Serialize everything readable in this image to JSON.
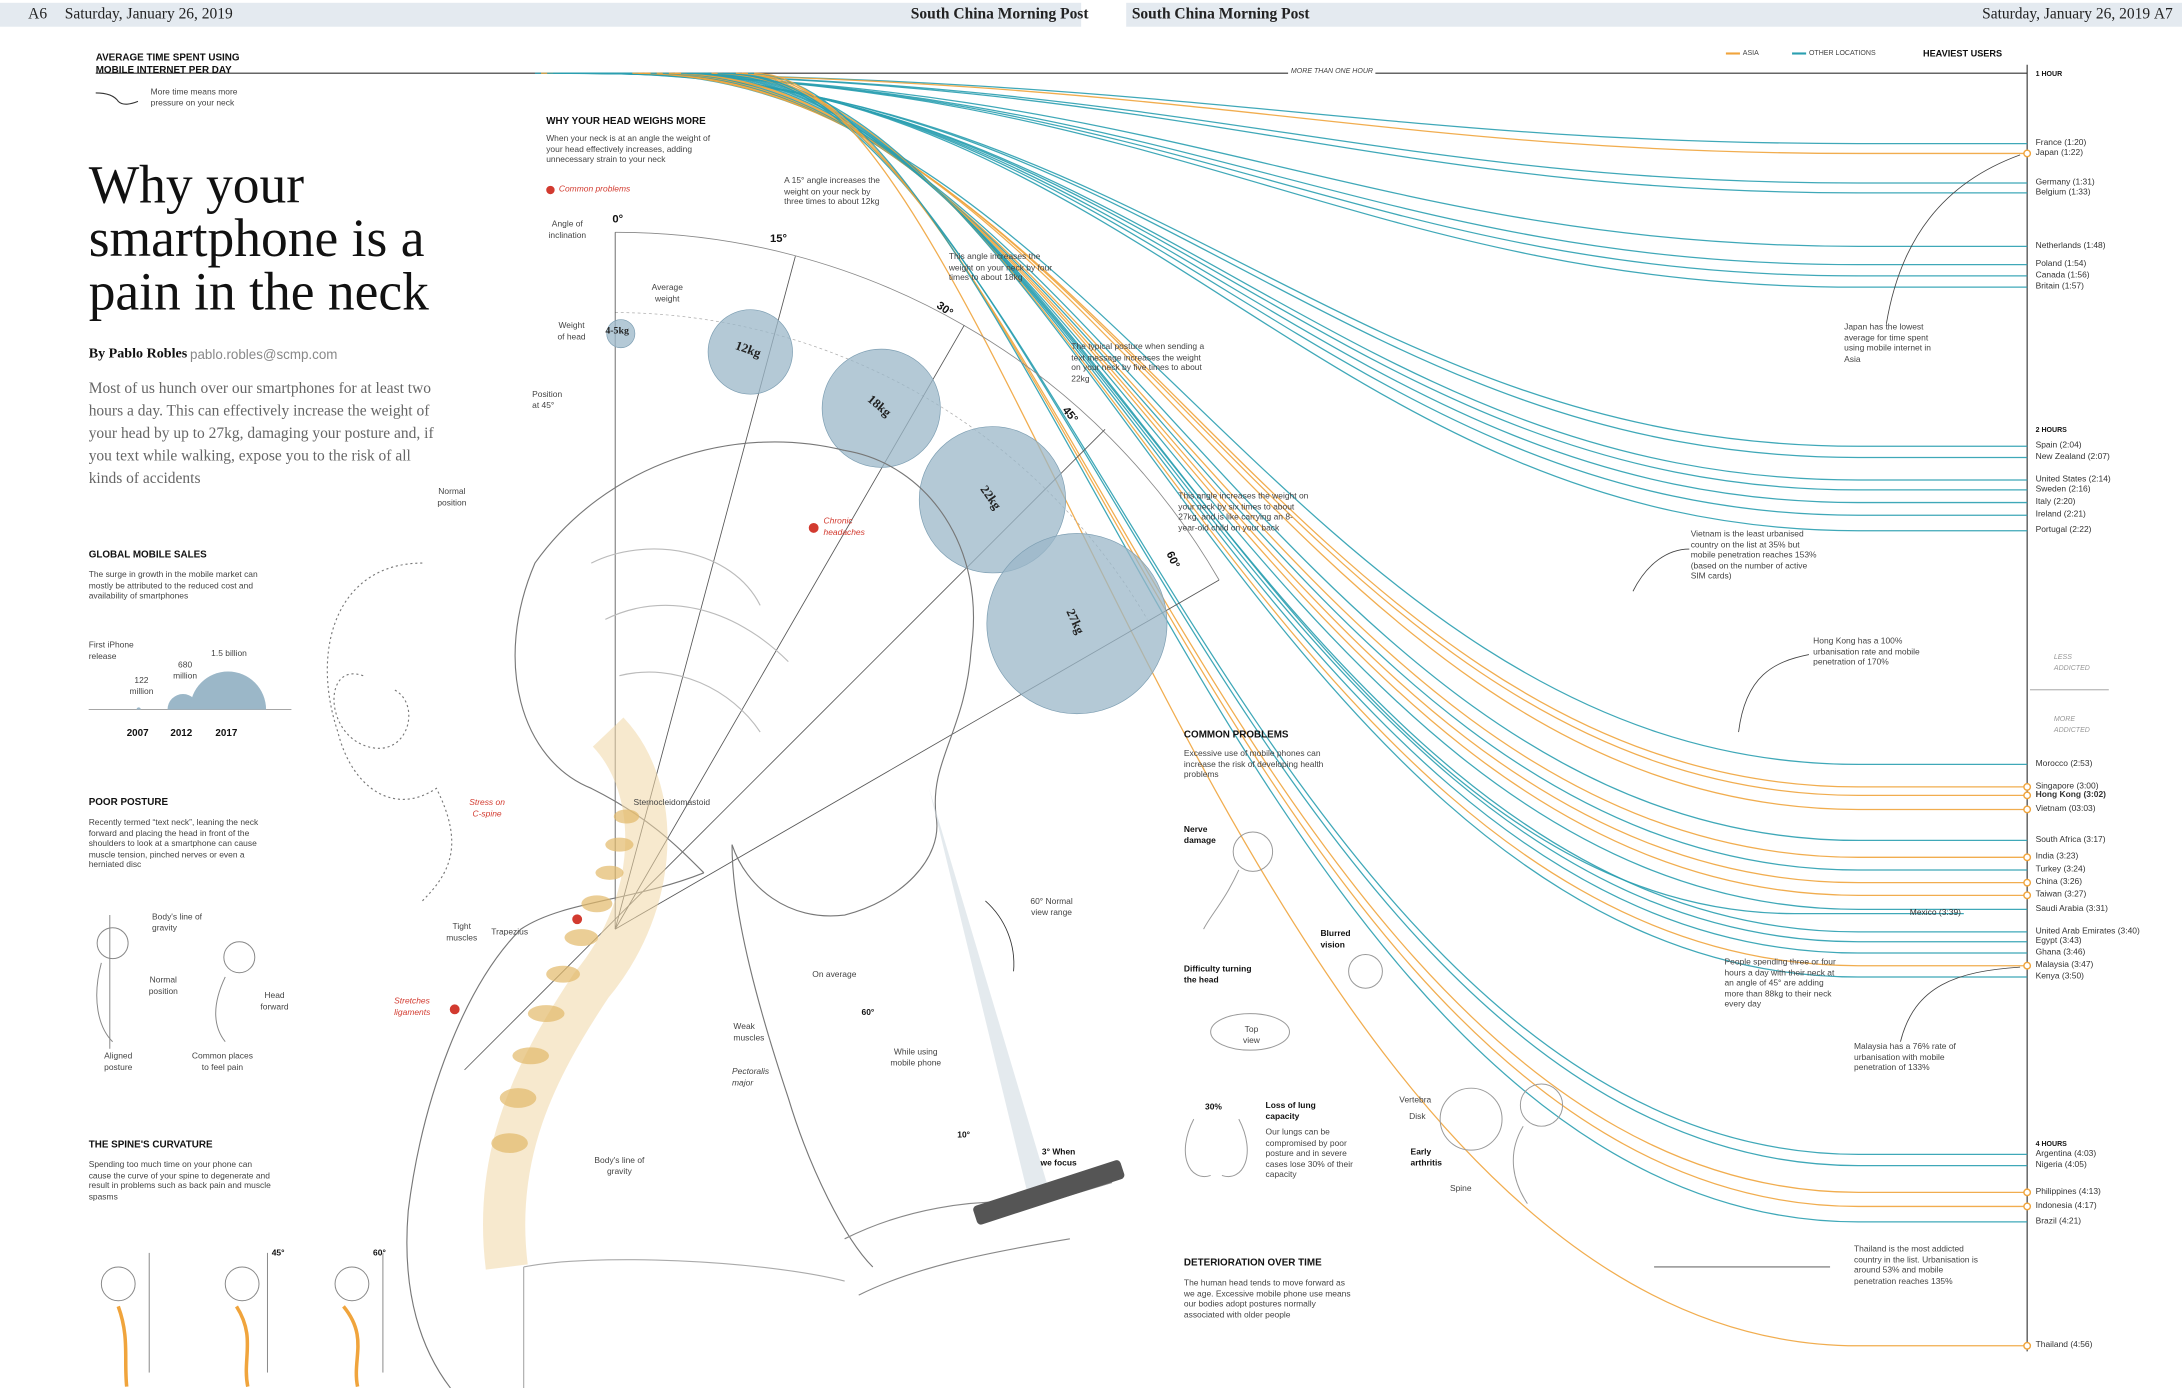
{
  "header": {
    "left_page": "A6",
    "left_date": "Saturday, January 26, 2019",
    "left_paper": "South China Morning Post",
    "right_paper": "South China Morning Post",
    "right_date": "Saturday, January 26, 2019",
    "right_page": "A7"
  },
  "headline": "Why your smartphone is a pain in the neck",
  "byline": {
    "author": "By Pablo Robles",
    "email": "pablo.robles@scmp.com"
  },
  "intro": "Most of us hunch over our smartphones for at least two hours a day. This can effectively increase the weight of your head by up to 27kg, damaging your posture and, if you text while walking, expose you to the risk of all kinds of accidents",
  "sales": {
    "title": "GLOBAL MOBILE SALES",
    "body": "The surge in growth in the mobile market can mostly be attributed to the reduced cost and availability of smartphones",
    "note": "First iPhone release",
    "amounts": [
      "122 million",
      "680 million",
      "1.5 billion"
    ],
    "years": [
      "2007",
      "2012",
      "2017"
    ]
  },
  "posture": {
    "title": "POOR POSTURE",
    "body": "Recently termed “text neck”, leaning the neck forward and placing the head in front of the shoulders to look at a smartphone can cause muscle tension, pinched nerves or even a herniated disc",
    "labels": [
      "Body's line of gravity",
      "Normal position",
      "Head forward",
      "Aligned posture",
      "Common places to feel pain"
    ]
  },
  "curvature": {
    "title": "THE SPINE'S CURVATURE",
    "body": "Spending too much time on your phone can cause the curve of your spine to degenerate and result in problems such as back pain and muscle spasms",
    "angles": [
      "45°",
      "60°"
    ]
  },
  "weight": {
    "title": "WHY YOUR HEAD WEIGHS MORE",
    "body": "When your neck is at an angle the weight of your head effectively increases, adding unnecessary strain to your neck",
    "legend": "Common problems",
    "labels": [
      "Angle of inclination",
      "Weight of head",
      "Average weight",
      "Position at 45°",
      "Normal position"
    ],
    "angles": [
      "0°",
      "15°",
      "30°",
      "45°",
      "60°"
    ],
    "weights": [
      "4-5kg",
      "12kg",
      "18kg",
      "22kg",
      "27kg"
    ],
    "notes": [
      "A 15° angle increases the weight on your neck by three times to about 12kg",
      "This angle increases the weight on your neck by four times to about 18kg",
      "The typical posture when sending a text message increases the weight on your neck by five times to about 22kg",
      "This angle increases the weight on your neck by six times to about 27kg, and is like carrying an 8-year-old child on your back"
    ]
  },
  "illustration": {
    "problems": [
      "Chronic headaches",
      "Stress on C-spine",
      "Stretches ligaments"
    ],
    "labels": [
      "Sternocleidomastoid",
      "Tight muscles",
      "Trapezius",
      "Weak muscles",
      "Pectoralis major",
      "Body's line of gravity",
      "60° Normal view range",
      "On average",
      "60°",
      "While using mobile phone",
      "10°",
      "3° When we focus"
    ]
  },
  "problems": {
    "title": "COMMON PROBLEMS",
    "body": "Excessive use of mobile phones can increase the risk of developing health problems",
    "labels": [
      "Nerve damage",
      "Blurred vision",
      "Difficulty turning the head",
      "Top view",
      "30%",
      "Loss of lung capacity",
      "Vertebra",
      "Disk",
      "Early arthritis",
      "Spine"
    ],
    "lung_note": "Our lungs can be compromised by poor posture and in severe cases lose 30% of their capacity"
  },
  "deterioration": {
    "title": "DETERIORATION OVER TIME",
    "body": "The human head tends to move forward as we age. Excessive mobile phone use means our bodies adopt postures normally associated with older people"
  },
  "usage": {
    "title": "AVERAGE TIME SPENT USING MOBILE INTERNET PER DAY",
    "key_note": "More time means more pressure on your neck",
    "legend": [
      {
        "name": "ASIA",
        "color": "#f0a43c"
      },
      {
        "name": "OTHER LOCATIONS",
        "color": "#2a9fb0"
      }
    ],
    "heaviest": "HEAVIEST USERS",
    "band": "MORE THAN ONE HOUR",
    "scale": [
      "1 HOUR",
      "2 HOURS",
      "4 HOURS"
    ],
    "less": "LESS ADDICTED",
    "more": "MORE ADDICTED",
    "countries": [
      {
        "label": "France (1:20)",
        "group": 1
      },
      {
        "label": "Japan (1:22)",
        "group": 0
      },
      {
        "label": "Germany (1:31)",
        "group": 1
      },
      {
        "label": "Belgium (1:33)",
        "group": 1
      },
      {
        "label": "Netherlands (1:48)",
        "group": 1
      },
      {
        "label": "Poland (1:54)",
        "group": 1
      },
      {
        "label": "Canada (1:56)",
        "group": 1
      },
      {
        "label": "Britain (1:57)",
        "group": 1
      },
      {
        "label": "Spain (2:04)",
        "group": 1
      },
      {
        "label": "New Zealand (2:07)",
        "group": 1
      },
      {
        "label": "United States (2:14)",
        "group": 1
      },
      {
        "label": "Sweden (2:16)",
        "group": 1
      },
      {
        "label": "Italy (2:20)",
        "group": 1
      },
      {
        "label": "Ireland (2:21)",
        "group": 1
      },
      {
        "label": "Portugal (2:22)",
        "group": 1
      },
      {
        "label": "Morocco (2:53)",
        "group": 1
      },
      {
        "label": "Singapore (3:00)",
        "group": 0
      },
      {
        "label": "Hong Kong (3:02)",
        "group": 0,
        "bold": true
      },
      {
        "label": "Vietnam (03:03)",
        "group": 0
      },
      {
        "label": "South Africa (3:17)",
        "group": 1
      },
      {
        "label": "India (3:23)",
        "group": 0
      },
      {
        "label": "Turkey (3:24)",
        "group": 1
      },
      {
        "label": "China (3:26)",
        "group": 0
      },
      {
        "label": "Taiwan (3:27)",
        "group": 0
      },
      {
        "label": "Saudi Arabia (3:31)",
        "group": 1
      },
      {
        "label": "Mexico (3:39)",
        "group": 1
      },
      {
        "label": "United Arab Emirates (3:40)",
        "group": 1
      },
      {
        "label": "Egypt (3:43)",
        "group": 1
      },
      {
        "label": "Ghana (3:46)",
        "group": 1
      },
      {
        "label": "Malaysia (3:47)",
        "group": 0
      },
      {
        "label": "Kenya (3:50)",
        "group": 1
      },
      {
        "label": "Argentina (4:03)",
        "group": 1
      },
      {
        "label": "Nigeria (4:05)",
        "group": 1
      },
      {
        "label": "Philippines (4:13)",
        "group": 0
      },
      {
        "label": "Indonesia (4:17)",
        "group": 0
      },
      {
        "label": "Brazil (4:21)",
        "group": 1
      },
      {
        "label": "Thailand (4:56)",
        "group": 0
      }
    ],
    "notes": [
      "Japan has the lowest average for time spent using mobile internet in Asia",
      "Vietnam is the least urbanised country on the list at 35% but mobile penetration reaches 153% (based on the number of active SIM cards)",
      "Hong Kong has a 100% urbanisation rate and mobile penetration of 170%",
      "People spending three or four hours a day with their neck at an angle of 45° are adding more than 88kg to their neck every day",
      "Malaysia has a 76% rate of urbanisation with mobile penetration of 133%",
      "Thailand is the most addicted country in the list. Urbanisation is around 53% and mobile penetration reaches 135%"
    ]
  }
}
